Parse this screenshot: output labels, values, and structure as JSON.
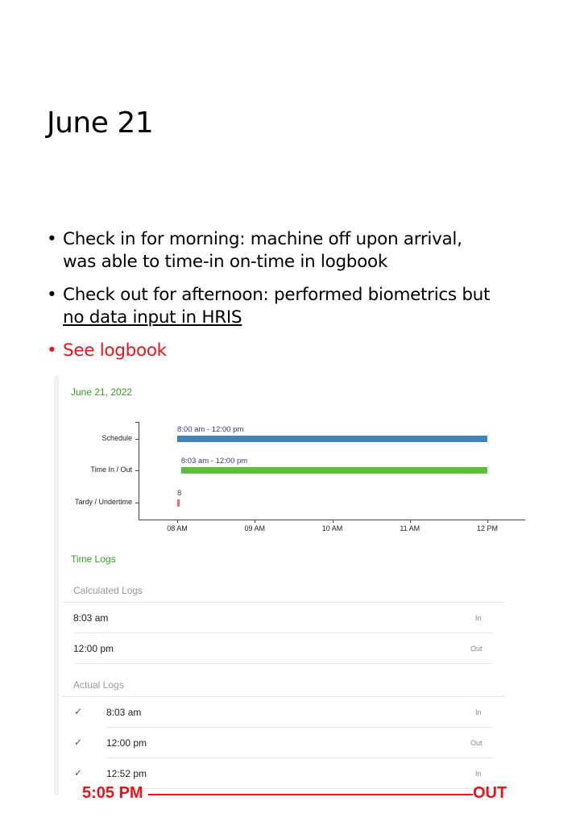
{
  "slide": {
    "title": "June 21",
    "bullets": [
      {
        "line1": "Check in for morning: machine off upon arrival,",
        "line2": "was able to time-in on-time in logbook"
      },
      {
        "line1": "Check out for afternoon: performed biometrics but",
        "line2": "no data input in HRIS"
      },
      {
        "line1": "See logbook"
      }
    ]
  },
  "screenshot": {
    "date": "June 21, 2022",
    "time_logs_title": "Time Logs",
    "calculated_title": "Calculated Logs",
    "calculated": [
      {
        "time": "8:03 am",
        "dir": "In"
      },
      {
        "time": "12:00 pm",
        "dir": "Out"
      }
    ],
    "actual_title": "Actual Logs",
    "actual": [
      {
        "time": "8:03 am",
        "dir": "In",
        "icon": "check-icon"
      },
      {
        "time": "12:00 pm",
        "dir": "Out",
        "icon": "check-icon"
      },
      {
        "time": "12:52 pm",
        "dir": "In",
        "icon": "check-icon"
      }
    ]
  },
  "annotation": {
    "time": "5:05 PM",
    "dir": "OUT",
    "color": "#e8141a"
  },
  "chart_data": {
    "type": "bar",
    "orientation": "horizontal-range",
    "categories": [
      "Schedule",
      "Time In / Out",
      "Tardy / Undertime"
    ],
    "x_ticks": [
      "08 AM",
      "09 AM",
      "10 AM",
      "11 AM",
      "12 PM"
    ],
    "xlim": [
      "08:00",
      "12:00"
    ],
    "series": [
      {
        "category": "Schedule",
        "start": "08:00",
        "end": "12:00",
        "label": "8:00 am - 12:00 pm",
        "color": "#4682b4"
      },
      {
        "category": "Time In / Out",
        "start": "08:03",
        "end": "12:00",
        "label": "8:03 am - 12:00 pm",
        "color": "#5bbf3a"
      },
      {
        "category": "Tardy / Undertime",
        "start": "08:00",
        "end": "08:02",
        "label": "8",
        "color": "#f06a6a"
      }
    ]
  }
}
